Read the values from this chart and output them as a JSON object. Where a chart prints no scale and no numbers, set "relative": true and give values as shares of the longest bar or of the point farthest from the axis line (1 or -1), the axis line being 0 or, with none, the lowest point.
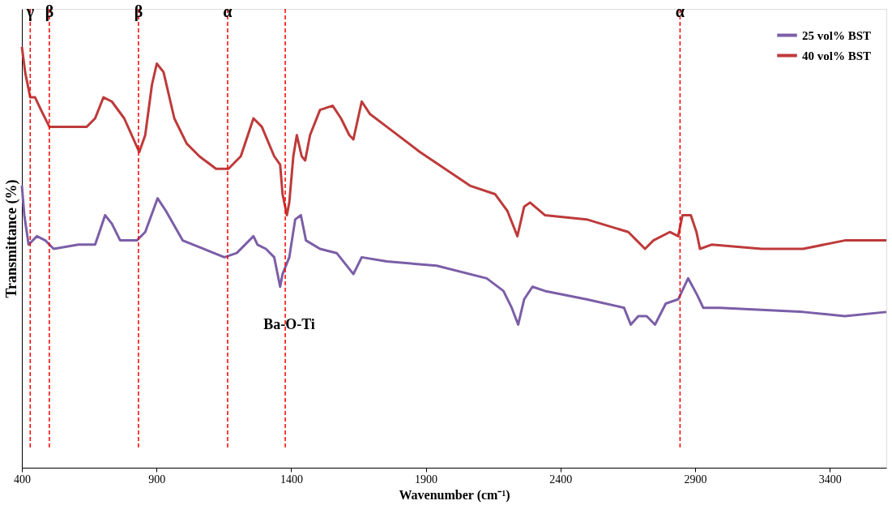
{
  "chart_data": {
    "type": "line",
    "relative": true,
    "xlabel": "Wavenumber (cm⁻¹)",
    "ylabel": "Transmittance (%)",
    "xlim": [
      400,
      3610
    ],
    "xticks": [
      400,
      900,
      1400,
      1900,
      2400,
      2900,
      3400
    ],
    "grid": false,
    "legend": "top right",
    "series": [
      {
        "name": "25 vol% BST",
        "color": "#7b5ea7",
        "x": [
          400,
          409,
          425,
          456,
          487,
          518,
          610,
          672,
          688,
          709,
          734,
          765,
          827,
          858,
          904,
          935,
          997,
          1074,
          1152,
          1198,
          1260,
          1275,
          1306,
          1337,
          1359,
          1368,
          1393,
          1415,
          1436,
          1455,
          1507,
          1569,
          1631,
          1662,
          1755,
          1940,
          2126,
          2188,
          2219,
          2243,
          2265,
          2296,
          2342,
          2497,
          2636,
          2661,
          2689,
          2720,
          2751,
          2791,
          2837,
          2874,
          2908,
          2930,
          2992,
          3301,
          3456,
          3610
        ],
        "values": [
          0.67,
          0.6,
          0.53,
          0.55,
          0.54,
          0.52,
          0.53,
          0.53,
          0.56,
          0.6,
          0.58,
          0.54,
          0.54,
          0.56,
          0.64,
          0.61,
          0.54,
          0.52,
          0.5,
          0.51,
          0.55,
          0.53,
          0.52,
          0.5,
          0.43,
          0.46,
          0.5,
          0.59,
          0.6,
          0.54,
          0.52,
          0.51,
          0.46,
          0.5,
          0.49,
          0.48,
          0.45,
          0.42,
          0.38,
          0.34,
          0.4,
          0.43,
          0.42,
          0.4,
          0.38,
          0.34,
          0.36,
          0.36,
          0.34,
          0.39,
          0.4,
          0.45,
          0.41,
          0.38,
          0.38,
          0.37,
          0.36,
          0.37
        ]
      },
      {
        "name": "40 vol% BST",
        "color": "#be3a3a",
        "x": [
          400,
          412,
          431,
          449,
          471,
          502,
          548,
          641,
          672,
          703,
          734,
          780,
          836,
          858,
          883,
          901,
          926,
          966,
          1012,
          1059,
          1121,
          1167,
          1213,
          1260,
          1291,
          1337,
          1359,
          1368,
          1384,
          1393,
          1408,
          1421,
          1439,
          1452,
          1470,
          1507,
          1554,
          1585,
          1616,
          1631,
          1662,
          1693,
          1755,
          1878,
          2064,
          2157,
          2203,
          2240,
          2265,
          2287,
          2342,
          2497,
          2652,
          2683,
          2714,
          2745,
          2806,
          2837,
          2853,
          2884,
          2905,
          2918,
          2961,
          3147,
          3301,
          3456,
          3487,
          3610
        ],
        "values": [
          1.0,
          0.94,
          0.88,
          0.88,
          0.85,
          0.81,
          0.81,
          0.81,
          0.83,
          0.88,
          0.87,
          0.83,
          0.75,
          0.79,
          0.91,
          0.96,
          0.94,
          0.83,
          0.77,
          0.74,
          0.71,
          0.71,
          0.74,
          0.83,
          0.81,
          0.74,
          0.72,
          0.65,
          0.6,
          0.63,
          0.74,
          0.79,
          0.74,
          0.73,
          0.79,
          0.85,
          0.86,
          0.83,
          0.79,
          0.78,
          0.87,
          0.84,
          0.81,
          0.75,
          0.67,
          0.65,
          0.61,
          0.55,
          0.62,
          0.63,
          0.6,
          0.59,
          0.56,
          0.54,
          0.52,
          0.54,
          0.56,
          0.55,
          0.6,
          0.6,
          0.56,
          0.52,
          0.53,
          0.52,
          0.52,
          0.54,
          0.54,
          0.54
        ]
      }
    ],
    "ref_lines": [
      {
        "axis": "x",
        "value": 431,
        "label": "γ",
        "color": "#ff0000",
        "line_style": "dashed"
      },
      {
        "axis": "x",
        "value": 502,
        "label": "β",
        "color": "#ff0000",
        "line_style": "dashed"
      },
      {
        "axis": "x",
        "value": 833,
        "label": "β",
        "color": "#ff0000",
        "line_style": "dashed"
      },
      {
        "axis": "x",
        "value": 1164,
        "label": "α",
        "color": "#ff0000",
        "line_style": "dashed"
      },
      {
        "axis": "x",
        "value": 1378,
        "label": null,
        "color": "#ff0000",
        "line_style": "dashed"
      },
      {
        "axis": "x",
        "value": 2844,
        "label": "α",
        "color": "#ff0000",
        "line_style": "dashed"
      }
    ],
    "annotations": [
      "Ba-O-Ti"
    ]
  }
}
